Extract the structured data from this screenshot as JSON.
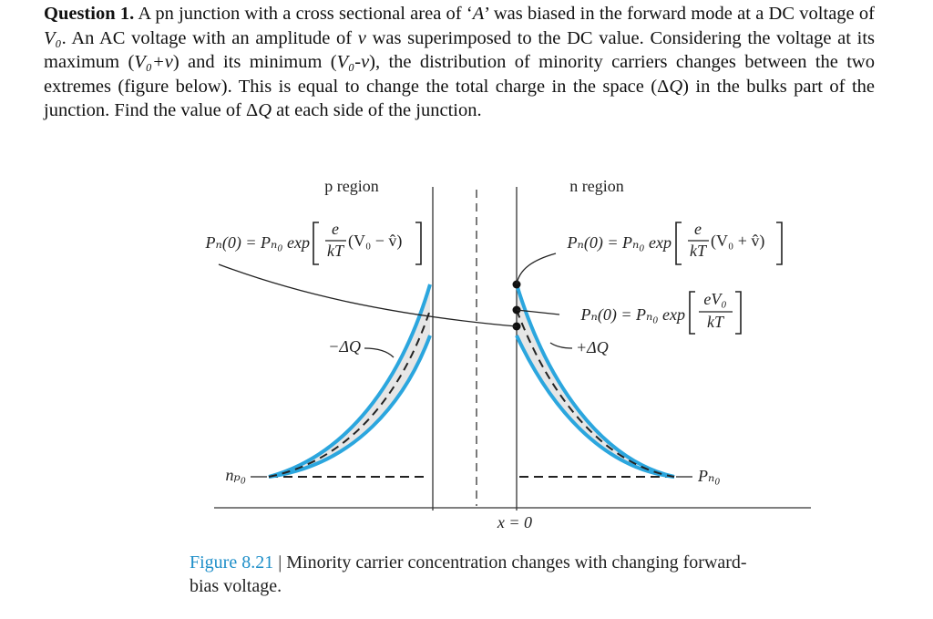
{
  "question": {
    "parts": [
      "Question 1.",
      " A pn junction with a cross sectional area of ‘",
      "A",
      "’ was biased in the forward mode at a DC voltage of ",
      "V₀",
      ". An AC voltage with an amplitude of ",
      "v",
      " was superimposed to the DC value. Considering the voltage at its maximum (",
      "V₀+v",
      ") and its minimum (",
      "V₀-v",
      "), the distribution of minority carriers changes between the two extremes (figure below). This is equal to change the total charge in the space (Δ",
      "Q",
      ") in the bulks part of the junction. Find the value of Δ",
      "Q",
      " at each side of the junction."
    ]
  },
  "figure": {
    "p_region": "p region",
    "n_region": "n region",
    "left_equation": {
      "lhs": "Pₙ(0) = Pₙ₀ exp",
      "numerator": "e",
      "denominator": "kT",
      "argument": "(V₀ − v̂)"
    },
    "right_equation": {
      "lhs": "Pₙ(0) = Pₙ₀ exp",
      "numerator": "e",
      "denominator": "kT",
      "argument": "(V₀ + v̂)"
    },
    "middle_equation": {
      "lhs": "Pₙ(0) = Pₙ₀ exp",
      "numerator": "eV₀",
      "denominator": "kT"
    },
    "minus_dq": "−ΔQ",
    "plus_dq": "+ΔQ",
    "n_p0": "nₚ₀",
    "p_n0": "Pₙ₀",
    "x_axis": "x = 0"
  },
  "caption": {
    "number": "Figure 8.21",
    "text": "| Minority carrier concentration changes with changing forward-bias voltage."
  }
}
